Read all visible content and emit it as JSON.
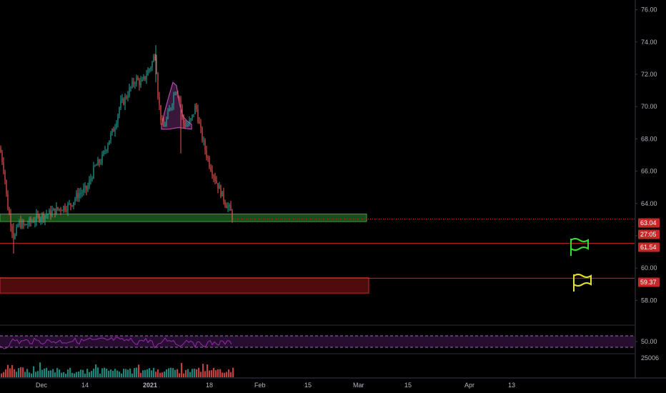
{
  "chart_data": {
    "type": "candlestick",
    "y_axis": {
      "range": [
        56.6,
        76.6
      ],
      "tick_labels": [
        "76.00",
        "74.00",
        "72.00",
        "70.00",
        "68.00",
        "66.00",
        "64.00",
        "62.00",
        "60.00",
        "58.00"
      ],
      "tick_values": [
        76,
        74,
        72,
        70,
        68,
        66,
        64,
        62,
        60,
        58
      ]
    },
    "x_axis": {
      "tick_labels": [
        "Dec",
        "14",
        "2021",
        "18",
        "Feb",
        "15",
        "Mar",
        "15",
        "Apr",
        "13"
      ]
    },
    "price_path": [
      [
        0,
        67.4
      ],
      [
        6,
        66.0
      ],
      [
        10,
        64.0
      ],
      [
        16,
        62.6
      ],
      [
        20,
        61.8
      ],
      [
        26,
        62.8
      ],
      [
        34,
        62.6
      ],
      [
        44,
        62.9
      ],
      [
        56,
        63.2
      ],
      [
        70,
        63.4
      ],
      [
        84,
        63.7
      ],
      [
        98,
        63.9
      ],
      [
        110,
        64.6
      ],
      [
        122,
        64.9
      ],
      [
        132,
        66.2
      ],
      [
        142,
        66.7
      ],
      [
        152,
        67.9
      ],
      [
        160,
        68.7
      ],
      [
        168,
        70.1
      ],
      [
        174,
        70.4
      ],
      [
        182,
        71.1
      ],
      [
        190,
        71.7
      ],
      [
        198,
        71.4
      ],
      [
        206,
        72.1
      ],
      [
        212,
        72.6
      ],
      [
        218,
        73.4
      ],
      [
        220,
        71.2
      ],
      [
        224,
        69.6
      ],
      [
        228,
        68.6
      ],
      [
        234,
        69.3
      ],
      [
        240,
        70.2
      ],
      [
        246,
        71.2
      ],
      [
        252,
        70.4
      ],
      [
        256,
        69.0
      ],
      [
        262,
        68.8
      ],
      [
        268,
        69.2
      ],
      [
        274,
        70.1
      ],
      [
        280,
        68.6
      ],
      [
        286,
        67.5
      ],
      [
        292,
        66.6
      ],
      [
        298,
        65.9
      ],
      [
        304,
        65.2
      ],
      [
        310,
        64.6
      ],
      [
        316,
        64.0
      ],
      [
        322,
        63.6
      ],
      [
        326,
        63.04
      ]
    ],
    "price_labels": [
      {
        "text": "63.04",
        "value": 63.04,
        "color": "#c62828"
      },
      {
        "text": "27:05",
        "value": 62.35,
        "color": "#c62828"
      },
      {
        "text": "61.54",
        "value": 61.54,
        "color": "#c62828"
      },
      {
        "text": "59.37",
        "value": 59.37,
        "color": "#c62828"
      }
    ],
    "zones": [
      {
        "name": "support-zone",
        "from": 62.88,
        "to": 63.35,
        "color": "#1f6b1f"
      },
      {
        "name": "resistance-zone",
        "from": 58.45,
        "to": 59.4,
        "color": "#6b1010"
      }
    ],
    "horizontal_lines": [
      {
        "value": 61.54,
        "color": "#c62828"
      },
      {
        "value": 59.37,
        "color": "#c62828"
      }
    ],
    "flags": [
      {
        "name": "green-flag",
        "color": "#33dd33"
      },
      {
        "name": "yellow-flag",
        "color": "#e8e030"
      }
    ],
    "rsi": {
      "tick_label": "50.00",
      "upper_band": 70,
      "lower_band": 30,
      "color": "#9c27b0"
    },
    "volume": {
      "tick_label": "25006",
      "up_color": "#26a69a",
      "down_color": "#ef5350"
    }
  }
}
